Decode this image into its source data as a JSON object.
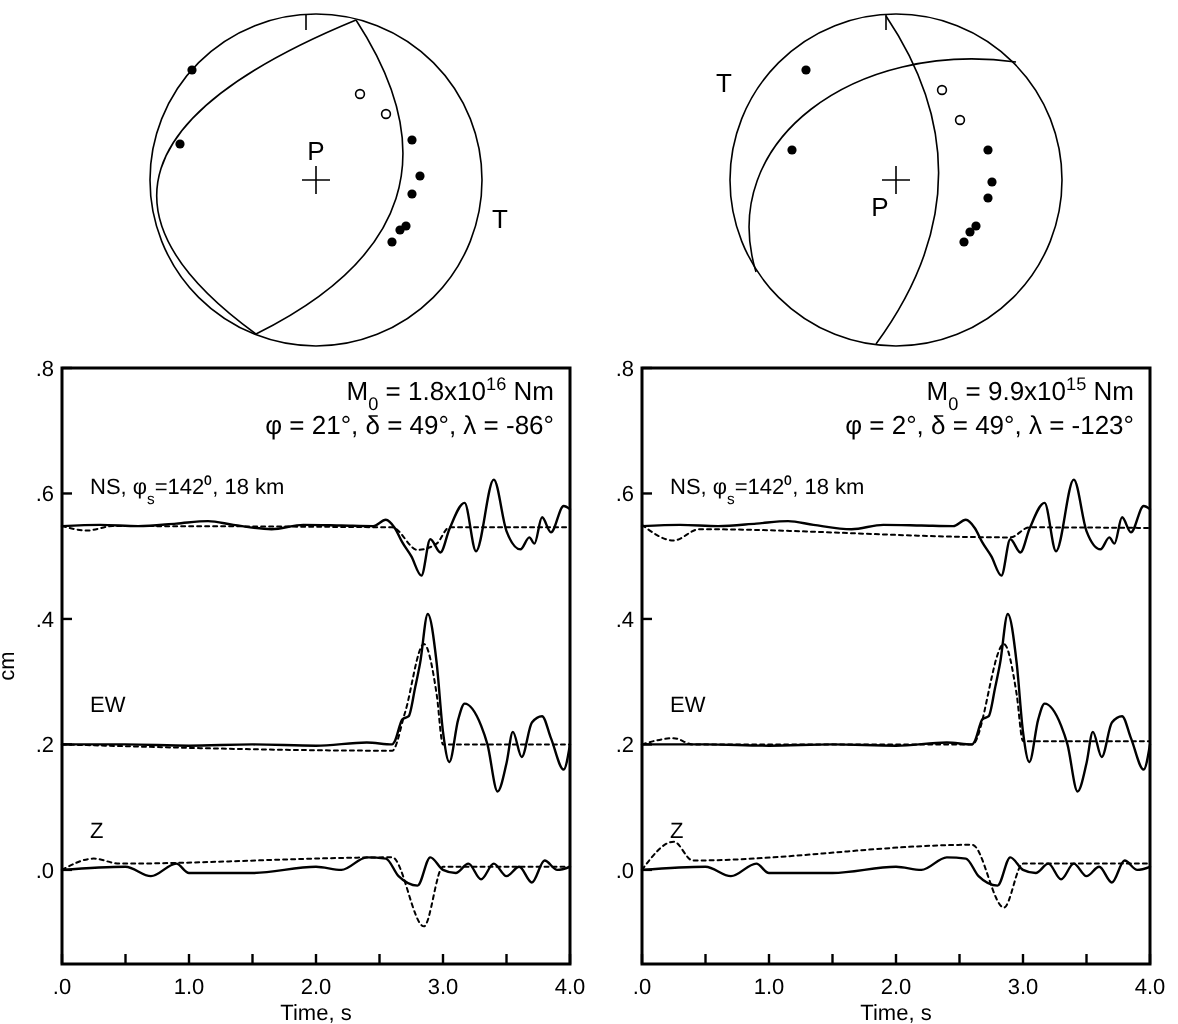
{
  "chart_data": [
    {
      "type": "line",
      "title": "M$_{0}$ = 1.8x10$^{16}$ Nm",
      "subtitle": "φ = 21°, δ = 49°, λ = -86°",
      "xlabel": "Time, s",
      "ylabel": "cm",
      "annotations": [
        "P",
        "T"
      ],
      "xlim": [
        0,
        4
      ],
      "ylim": [
        -0.15,
        0.8
      ],
      "xticks": [
        {
          "value": 0,
          "label": ".0"
        },
        {
          "value": 0.5,
          "label": null
        },
        {
          "value": 1,
          "label": "1.0"
        },
        {
          "value": 1.5,
          "label": null
        },
        {
          "value": 2,
          "label": "2.0"
        },
        {
          "value": 2.5,
          "label": null
        },
        {
          "value": 3,
          "label": "3.0"
        },
        {
          "value": 3.5,
          "label": null
        },
        {
          "value": 4,
          "label": "4.0"
        }
      ],
      "yticks": [
        {
          "value": 0,
          "label": ".0"
        },
        {
          "value": 0.2,
          "label": ".2"
        },
        {
          "value": 0.4,
          "label": ".4"
        },
        {
          "value": 0.6,
          "label": ".6"
        },
        {
          "value": 0.8,
          "label": ".8"
        }
      ],
      "grid": false,
      "marker": "none",
      "series": [
        {
          "name": "NS, φ$_{s}$=142⁰, 18 km",
          "color": "#000000",
          "line_style": "solid",
          "x": [
            0,
            0.3,
            0.6,
            0.9,
            1.15,
            1.35,
            1.65,
            1.9,
            2.2,
            2.45,
            2.55,
            2.62,
            2.68,
            2.75,
            2.83,
            2.9,
            2.98,
            3.05,
            3.17,
            3.26,
            3.4,
            3.5,
            3.61,
            3.68,
            3.72,
            3.78,
            3.85,
            3.95,
            4.0
          ],
          "values": [
            0.548,
            0.55,
            0.548,
            0.552,
            0.556,
            0.55,
            0.543,
            0.55,
            0.549,
            0.548,
            0.558,
            0.545,
            0.522,
            0.5,
            0.469,
            0.527,
            0.506,
            0.543,
            0.585,
            0.508,
            0.622,
            0.54,
            0.511,
            0.53,
            0.52,
            0.562,
            0.538,
            0.58,
            0.575
          ]
        },
        {
          "color": "#000000",
          "line_style": "dotted",
          "x": [
            0,
            0.2,
            0.4,
            2.6,
            2.8,
            2.95,
            3.05,
            4.0
          ],
          "values": [
            0.548,
            0.541,
            0.548,
            0.546,
            0.51,
            0.52,
            0.546,
            0.546
          ]
        },
        {
          "name": "EW",
          "color": "#000000",
          "line_style": "solid",
          "x": [
            0,
            0.5,
            1.0,
            1.5,
            2.0,
            2.4,
            2.6,
            2.62,
            2.68,
            2.73,
            2.78,
            2.82,
            2.88,
            2.95,
            3.0,
            3.05,
            3.12,
            3.17,
            3.3,
            3.35,
            3.43,
            3.5,
            3.55,
            3.62,
            3.7,
            3.78,
            3.85,
            3.95,
            4.0
          ],
          "values": [
            0.2,
            0.2,
            0.198,
            0.2,
            0.198,
            0.203,
            0.2,
            0.205,
            0.24,
            0.245,
            0.29,
            0.33,
            0.408,
            0.33,
            0.22,
            0.172,
            0.24,
            0.265,
            0.23,
            0.2,
            0.125,
            0.17,
            0.22,
            0.18,
            0.235,
            0.245,
            0.21,
            0.16,
            0.2
          ]
        },
        {
          "color": "#000000",
          "line_style": "dotted",
          "x": [
            0,
            2.6,
            2.7,
            2.85,
            2.95,
            3.0,
            4.0
          ],
          "values": [
            0.2,
            0.19,
            0.25,
            0.36,
            0.28,
            0.2,
            0.2
          ]
        },
        {
          "name": "Z",
          "color": "#000000",
          "line_style": "solid",
          "x": [
            0,
            0.5,
            0.7,
            0.9,
            1.0,
            1.5,
            2.0,
            2.2,
            2.4,
            2.55,
            2.65,
            2.8,
            2.9,
            3.0,
            3.1,
            3.2,
            3.3,
            3.4,
            3.5,
            3.6,
            3.7,
            3.8,
            3.9,
            4.0
          ],
          "values": [
            0,
            0.005,
            -0.01,
            0.01,
            -0.005,
            -0.005,
            0.005,
            0,
            0.02,
            0.018,
            -0.01,
            -0.025,
            0.02,
            0,
            -0.005,
            0.01,
            -0.015,
            0.01,
            -0.01,
            0.005,
            -0.02,
            0.015,
            0,
            0.005
          ]
        },
        {
          "color": "#000000",
          "line_style": "dotted",
          "x": [
            0,
            0.25,
            0.45,
            2.6,
            2.85,
            3.0,
            4.0
          ],
          "values": [
            0,
            0.018,
            0.01,
            0.02,
            -0.09,
            0.005,
            0.005
          ]
        }
      ]
    },
    {
      "type": "line",
      "title": "M$_{0}$ = 9.9x10$^{15}$ Nm",
      "subtitle": "φ = 2°, δ = 49°, λ = -123°",
      "xlabel": "Time, s",
      "annotations": [
        "P",
        "T"
      ],
      "xlim": [
        0,
        4
      ],
      "ylim": [
        -0.15,
        0.8
      ],
      "xticks": [
        {
          "value": 0,
          "label": ".0"
        },
        {
          "value": 0.5,
          "label": null
        },
        {
          "value": 1,
          "label": "1.0"
        },
        {
          "value": 1.5,
          "label": null
        },
        {
          "value": 2,
          "label": "2.0"
        },
        {
          "value": 2.5,
          "label": null
        },
        {
          "value": 3,
          "label": "3.0"
        },
        {
          "value": 3.5,
          "label": null
        },
        {
          "value": 4,
          "label": "4.0"
        }
      ],
      "yticks": [
        {
          "value": 0,
          "label": ".0"
        },
        {
          "value": 0.2,
          "label": ".2"
        },
        {
          "value": 0.4,
          "label": ".4"
        },
        {
          "value": 0.6,
          "label": ".6"
        },
        {
          "value": 0.8,
          "label": ".8"
        }
      ],
      "grid": false,
      "marker": "none",
      "series": [
        {
          "name": "NS, φ$_{s}$=142⁰, 18 km",
          "color": "#000000",
          "line_style": "solid",
          "x": [
            0,
            0.3,
            0.6,
            0.9,
            1.15,
            1.35,
            1.65,
            1.9,
            2.2,
            2.45,
            2.55,
            2.62,
            2.68,
            2.75,
            2.83,
            2.9,
            2.98,
            3.05,
            3.17,
            3.26,
            3.4,
            3.5,
            3.61,
            3.68,
            3.72,
            3.78,
            3.85,
            3.95,
            4.0
          ],
          "values": [
            0.548,
            0.55,
            0.548,
            0.552,
            0.556,
            0.55,
            0.543,
            0.55,
            0.549,
            0.548,
            0.558,
            0.545,
            0.522,
            0.5,
            0.469,
            0.527,
            0.506,
            0.543,
            0.585,
            0.508,
            0.622,
            0.54,
            0.511,
            0.53,
            0.52,
            0.562,
            0.538,
            0.58,
            0.575
          ]
        },
        {
          "color": "#000000",
          "line_style": "dotted",
          "x": [
            0,
            0.25,
            0.45,
            2.9,
            3.05,
            4.0
          ],
          "values": [
            0.55,
            0.525,
            0.543,
            0.53,
            0.546,
            0.545
          ]
        },
        {
          "name": "EW",
          "color": "#000000",
          "line_style": "solid",
          "x": [
            0,
            0.5,
            1.0,
            1.5,
            2.0,
            2.4,
            2.6,
            2.62,
            2.68,
            2.73,
            2.78,
            2.82,
            2.88,
            2.95,
            3.0,
            3.05,
            3.12,
            3.17,
            3.3,
            3.35,
            3.43,
            3.5,
            3.55,
            3.62,
            3.7,
            3.78,
            3.85,
            3.95,
            4.0
          ],
          "values": [
            0.2,
            0.2,
            0.198,
            0.2,
            0.198,
            0.203,
            0.2,
            0.205,
            0.24,
            0.245,
            0.29,
            0.33,
            0.408,
            0.33,
            0.22,
            0.172,
            0.24,
            0.265,
            0.23,
            0.2,
            0.125,
            0.17,
            0.22,
            0.18,
            0.235,
            0.245,
            0.21,
            0.16,
            0.2
          ]
        },
        {
          "color": "#000000",
          "line_style": "dotted",
          "x": [
            0,
            0.25,
            0.4,
            2.6,
            2.85,
            2.95,
            3.0,
            4.0
          ],
          "values": [
            0.2,
            0.21,
            0.2,
            0.2,
            0.36,
            0.28,
            0.205,
            0.205
          ]
        },
        {
          "name": "Z",
          "color": "#000000",
          "line_style": "solid",
          "x": [
            0,
            0.5,
            0.7,
            0.9,
            1.0,
            1.5,
            2.0,
            2.2,
            2.4,
            2.55,
            2.65,
            2.8,
            2.9,
            3.0,
            3.1,
            3.2,
            3.3,
            3.4,
            3.5,
            3.6,
            3.7,
            3.8,
            3.9,
            4.0
          ],
          "values": [
            0,
            0.005,
            -0.01,
            0.01,
            -0.005,
            -0.005,
            0.005,
            0,
            0.02,
            0.018,
            -0.01,
            -0.025,
            0.02,
            0,
            -0.005,
            0.01,
            -0.015,
            0.01,
            -0.01,
            0.005,
            -0.02,
            0.015,
            0,
            0.005
          ]
        },
        {
          "color": "#000000",
          "line_style": "dotted",
          "x": [
            0,
            0.25,
            0.4,
            2.6,
            2.85,
            3.0,
            4.0
          ],
          "values": [
            0,
            0.045,
            0.015,
            0.04,
            -0.06,
            0.01,
            0.01
          ]
        }
      ]
    }
  ]
}
